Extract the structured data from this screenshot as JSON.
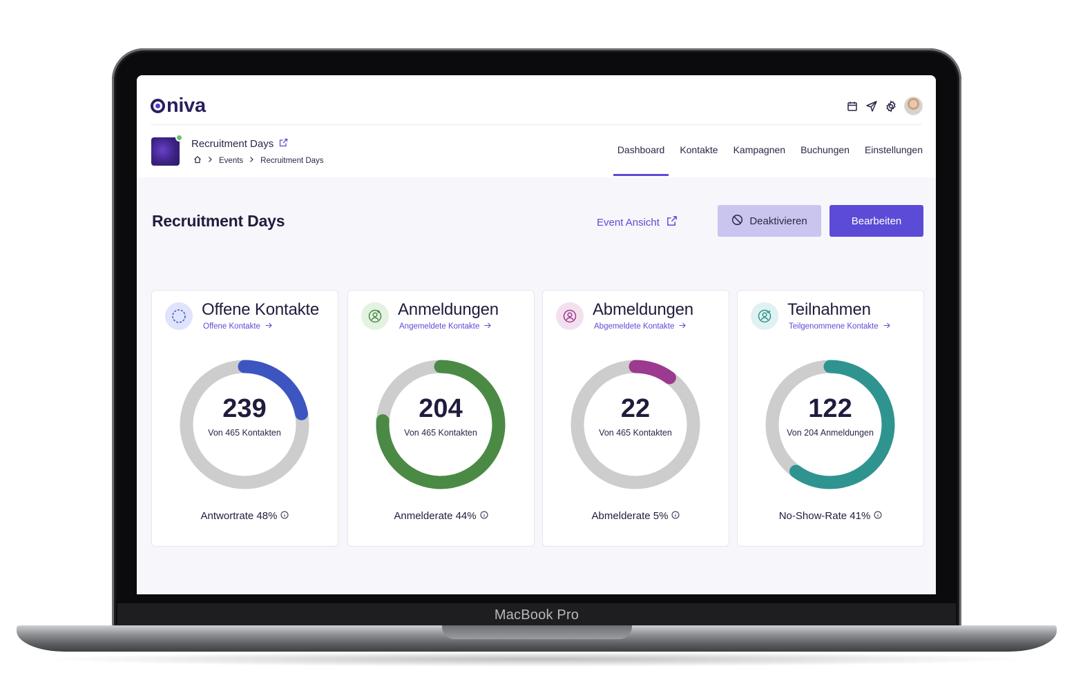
{
  "device": {
    "model_label": "MacBook Pro"
  },
  "app": {
    "logo_text": "niva"
  },
  "topbar_icons": [
    "calendar-icon",
    "send-icon",
    "gear-icon",
    "user-avatar"
  ],
  "event": {
    "name": "Recruitment Days",
    "breadcrumb": [
      "Events",
      "Recruitment Days"
    ]
  },
  "nav": {
    "tabs": [
      {
        "label": "Dashboard",
        "active": true
      },
      {
        "label": "Kontakte",
        "active": false
      },
      {
        "label": "Kampagnen",
        "active": false
      },
      {
        "label": "Buchungen",
        "active": false
      },
      {
        "label": "Einstellungen",
        "active": false
      }
    ]
  },
  "page": {
    "title": "Recruitment Days",
    "event_view_label": "Event Ansicht",
    "deactivate_label": "Deaktivieren",
    "edit_label": "Bearbeiten"
  },
  "cards": [
    {
      "title": "Offene Kontakte",
      "subtitle": "Offene Kontakte",
      "value": "239",
      "caption": "Von 465 Kontakten",
      "footer": "Antwortrate 48%",
      "fraction": 0.22,
      "color": "#3d55c0",
      "icon_bg": "#dfe3fb",
      "icon": "user-dashed-icon"
    },
    {
      "title": "Anmeldungen",
      "subtitle": "Angemeldete Kontakte",
      "value": "204",
      "caption": "Von 465 Kontakten",
      "footer": "Anmelderate 44%",
      "fraction": 0.76,
      "color": "#4a8a45",
      "icon_bg": "#e3f2e1",
      "icon": "user-plus-icon"
    },
    {
      "title": "Abmeldungen",
      "subtitle": "Abgemeldete Kontakte",
      "value": "22",
      "caption": "Von 465 Kontakten",
      "footer": "Abmelderate 5%",
      "fraction": 0.1,
      "color": "#9b3a8e",
      "icon_bg": "#f3e0ef",
      "icon": "user-minus-icon"
    },
    {
      "title": "Teilnahmen",
      "subtitle": "Teilgenommene Kontakte",
      "value": "122",
      "caption": "Von 204 Anmeldungen",
      "footer": "No-Show-Rate 41%",
      "fraction": 0.6,
      "color": "#2f9490",
      "icon_bg": "#dff1f0",
      "icon": "user-check-icon"
    }
  ]
}
